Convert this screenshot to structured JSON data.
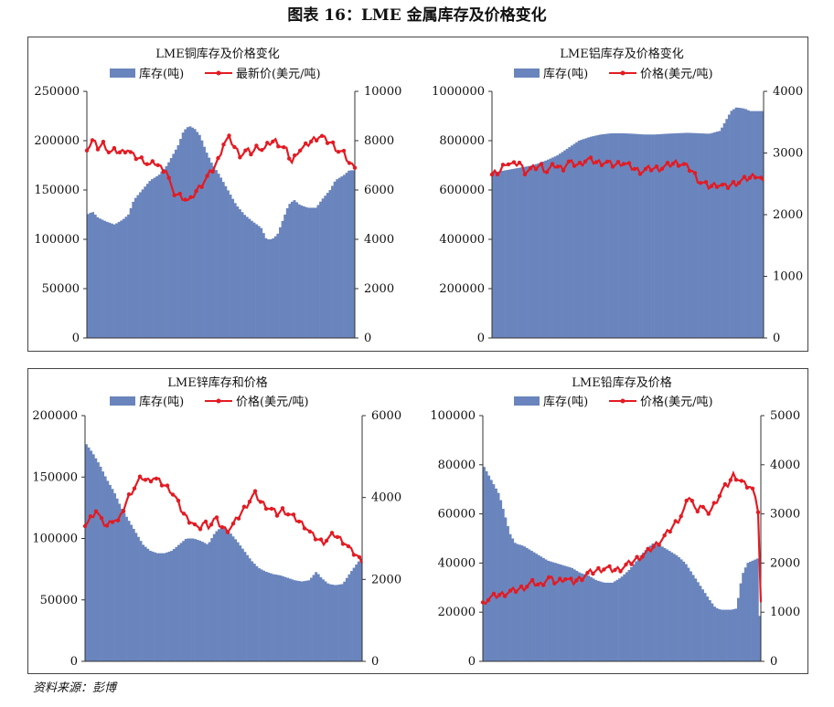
{
  "figure_title": "图表 16：LME 金属库存及价格变化",
  "source_note": "资料来源：彭博",
  "colors": {
    "inventory": "#6a85bd",
    "price": "#e31b23"
  },
  "chart_data": [
    {
      "id": "copper",
      "type": "bar+line",
      "title": "LME铜库存及价格变化",
      "legend": {
        "bar": "库存(吨)",
        "line": "最新价(美元/吨)"
      },
      "left_axis": {
        "min": 0,
        "max": 250000,
        "ticks": [
          "0",
          "50000",
          "100000",
          "150000",
          "200000",
          "250000"
        ]
      },
      "right_axis": {
        "min": 0,
        "max": 10000,
        "ticks": [
          "0",
          "2000",
          "4000",
          "6000",
          "8000",
          "10000"
        ]
      },
      "inventory_series": [
        [
          0,
          125000
        ],
        [
          2,
          128000
        ],
        [
          4,
          122000
        ],
        [
          7,
          118000
        ],
        [
          10,
          115000
        ],
        [
          13,
          120000
        ],
        [
          15,
          125000
        ],
        [
          17,
          140000
        ],
        [
          20,
          150000
        ],
        [
          23,
          160000
        ],
        [
          26,
          165000
        ],
        [
          29,
          175000
        ],
        [
          31,
          185000
        ],
        [
          33,
          195000
        ],
        [
          35,
          210000
        ],
        [
          37,
          215000
        ],
        [
          39,
          212000
        ],
        [
          41,
          205000
        ],
        [
          43,
          190000
        ],
        [
          45,
          178000
        ],
        [
          48,
          165000
        ],
        [
          51,
          150000
        ],
        [
          54,
          135000
        ],
        [
          57,
          125000
        ],
        [
          60,
          118000
        ],
        [
          63,
          112000
        ],
        [
          65,
          100000
        ],
        [
          67,
          100000
        ],
        [
          69,
          105000
        ],
        [
          71,
          120000
        ],
        [
          73,
          135000
        ],
        [
          75,
          140000
        ],
        [
          77,
          135000
        ],
        [
          80,
          132000
        ],
        [
          83,
          132000
        ],
        [
          85,
          140000
        ],
        [
          88,
          150000
        ],
        [
          90,
          160000
        ],
        [
          93,
          165000
        ],
        [
          95,
          170000
        ],
        [
          97,
          170000
        ]
      ],
      "price_series": [
        [
          0,
          7600
        ],
        [
          2,
          8000
        ],
        [
          4,
          7700
        ],
        [
          6,
          7900
        ],
        [
          8,
          7500
        ],
        [
          10,
          7600
        ],
        [
          12,
          7500
        ],
        [
          14,
          7700
        ],
        [
          16,
          7400
        ],
        [
          18,
          7300
        ],
        [
          20,
          7200
        ],
        [
          22,
          7000
        ],
        [
          24,
          7100
        ],
        [
          26,
          6900
        ],
        [
          28,
          6800
        ],
        [
          30,
          5900
        ],
        [
          32,
          5800
        ],
        [
          34,
          5700
        ],
        [
          36,
          5500
        ],
        [
          38,
          5900
        ],
        [
          40,
          6200
        ],
        [
          42,
          6500
        ],
        [
          44,
          6800
        ],
        [
          46,
          7200
        ],
        [
          48,
          7900
        ],
        [
          50,
          8100
        ],
        [
          52,
          7700
        ],
        [
          54,
          7400
        ],
        [
          56,
          7600
        ],
        [
          58,
          7500
        ],
        [
          60,
          7800
        ],
        [
          62,
          7600
        ],
        [
          64,
          7900
        ],
        [
          66,
          8000
        ],
        [
          68,
          7800
        ],
        [
          70,
          7600
        ],
        [
          72,
          7100
        ],
        [
          74,
          7600
        ],
        [
          76,
          7700
        ],
        [
          78,
          7900
        ],
        [
          80,
          8100
        ],
        [
          82,
          8200
        ],
        [
          84,
          8000
        ],
        [
          86,
          7900
        ],
        [
          88,
          7600
        ],
        [
          90,
          7500
        ],
        [
          92,
          7100
        ],
        [
          94,
          6900
        ]
      ]
    },
    {
      "id": "aluminum",
      "type": "bar+line",
      "title": "LME铝库存及价格变化",
      "legend": {
        "bar": "库存(吨)",
        "line": "价格(美元/吨)"
      },
      "left_axis": {
        "min": 0,
        "max": 1000000,
        "ticks": [
          "0",
          "200000",
          "400000",
          "600000",
          "800000",
          "1000000"
        ]
      },
      "right_axis": {
        "min": 0,
        "max": 4000,
        "ticks": [
          "0",
          "1000",
          "2000",
          "3000",
          "4000"
        ]
      },
      "inventory_series": [
        [
          0,
          670000
        ],
        [
          5,
          680000
        ],
        [
          10,
          690000
        ],
        [
          15,
          700000
        ],
        [
          20,
          720000
        ],
        [
          24,
          740000
        ],
        [
          28,
          770000
        ],
        [
          32,
          800000
        ],
        [
          36,
          815000
        ],
        [
          40,
          825000
        ],
        [
          44,
          830000
        ],
        [
          48,
          830000
        ],
        [
          52,
          828000
        ],
        [
          56,
          825000
        ],
        [
          60,
          825000
        ],
        [
          64,
          828000
        ],
        [
          68,
          830000
        ],
        [
          72,
          832000
        ],
        [
          76,
          830000
        ],
        [
          80,
          828000
        ],
        [
          84,
          840000
        ],
        [
          86,
          880000
        ],
        [
          88,
          920000
        ],
        [
          90,
          935000
        ],
        [
          93,
          930000
        ],
        [
          95,
          920000
        ],
        [
          97,
          920000
        ],
        [
          100,
          920000
        ]
      ],
      "price_series": [
        [
          0,
          2650
        ],
        [
          3,
          2700
        ],
        [
          5,
          2850
        ],
        [
          8,
          2800
        ],
        [
          10,
          2850
        ],
        [
          12,
          2700
        ],
        [
          15,
          2750
        ],
        [
          18,
          2800
        ],
        [
          20,
          2700
        ],
        [
          23,
          2800
        ],
        [
          26,
          2750
        ],
        [
          28,
          2850
        ],
        [
          32,
          2800
        ],
        [
          35,
          2900
        ],
        [
          38,
          2850
        ],
        [
          42,
          2850
        ],
        [
          45,
          2800
        ],
        [
          48,
          2850
        ],
        [
          52,
          2750
        ],
        [
          55,
          2700
        ],
        [
          58,
          2750
        ],
        [
          62,
          2750
        ],
        [
          65,
          2800
        ],
        [
          68,
          2850
        ],
        [
          71,
          2800
        ],
        [
          74,
          2700
        ],
        [
          76,
          2550
        ],
        [
          78,
          2500
        ],
        [
          80,
          2450
        ],
        [
          83,
          2500
        ],
        [
          86,
          2450
        ],
        [
          89,
          2500
        ],
        [
          92,
          2550
        ],
        [
          95,
          2600
        ],
        [
          97,
          2650
        ],
        [
          100,
          2550
        ]
      ]
    },
    {
      "id": "zinc",
      "type": "bar+line",
      "title": "LME锌库存和价格",
      "legend": {
        "bar": "库存(吨)",
        "line": "价格(美元/吨)"
      },
      "left_axis": {
        "min": 0,
        "max": 200000,
        "ticks": [
          "0",
          "50000",
          "100000",
          "150000",
          "200000"
        ]
      },
      "right_axis": {
        "min": 0,
        "max": 6000,
        "ticks": [
          "0",
          "2000",
          "4000",
          "6000"
        ]
      },
      "inventory_series": [
        [
          0,
          178000
        ],
        [
          3,
          170000
        ],
        [
          6,
          160000
        ],
        [
          9,
          148000
        ],
        [
          12,
          138000
        ],
        [
          15,
          125000
        ],
        [
          18,
          115000
        ],
        [
          21,
          105000
        ],
        [
          24,
          95000
        ],
        [
          27,
          90000
        ],
        [
          30,
          88000
        ],
        [
          33,
          88000
        ],
        [
          36,
          90000
        ],
        [
          39,
          95000
        ],
        [
          42,
          100000
        ],
        [
          45,
          100000
        ],
        [
          48,
          98000
        ],
        [
          51,
          95000
        ],
        [
          54,
          105000
        ],
        [
          57,
          110000
        ],
        [
          60,
          105000
        ],
        [
          63,
          98000
        ],
        [
          66,
          90000
        ],
        [
          69,
          82000
        ],
        [
          72,
          76000
        ],
        [
          75,
          73000
        ],
        [
          78,
          71000
        ],
        [
          81,
          70000
        ],
        [
          84,
          68000
        ],
        [
          87,
          66000
        ],
        [
          90,
          65000
        ],
        [
          93,
          66000
        ],
        [
          96,
          73000
        ],
        [
          98,
          68000
        ],
        [
          101,
          63000
        ],
        [
          104,
          62000
        ],
        [
          107,
          63000
        ],
        [
          110,
          72000
        ],
        [
          113,
          80000
        ],
        [
          115,
          85000
        ]
      ],
      "price_series": [
        [
          0,
          3300
        ],
        [
          2,
          3500
        ],
        [
          4,
          3700
        ],
        [
          6,
          3400
        ],
        [
          8,
          3300
        ],
        [
          10,
          3500
        ],
        [
          12,
          3400
        ],
        [
          14,
          3800
        ],
        [
          16,
          4100
        ],
        [
          18,
          4300
        ],
        [
          20,
          4500
        ],
        [
          22,
          4400
        ],
        [
          24,
          4500
        ],
        [
          26,
          4400
        ],
        [
          28,
          4300
        ],
        [
          30,
          4200
        ],
        [
          32,
          4000
        ],
        [
          34,
          3700
        ],
        [
          36,
          3500
        ],
        [
          38,
          3400
        ],
        [
          40,
          3200
        ],
        [
          42,
          3400
        ],
        [
          44,
          3300
        ],
        [
          46,
          3500
        ],
        [
          48,
          3300
        ],
        [
          50,
          3200
        ],
        [
          52,
          3300
        ],
        [
          54,
          3500
        ],
        [
          56,
          3700
        ],
        [
          58,
          3900
        ],
        [
          60,
          4100
        ],
        [
          62,
          3900
        ],
        [
          64,
          3800
        ],
        [
          66,
          3700
        ],
        [
          68,
          3600
        ],
        [
          70,
          3700
        ],
        [
          72,
          3600
        ],
        [
          74,
          3500
        ],
        [
          76,
          3400
        ],
        [
          78,
          3300
        ],
        [
          80,
          3100
        ],
        [
          82,
          3000
        ],
        [
          84,
          2900
        ],
        [
          86,
          3000
        ],
        [
          88,
          3100
        ],
        [
          90,
          3000
        ],
        [
          92,
          2900
        ],
        [
          94,
          2700
        ],
        [
          96,
          2600
        ],
        [
          98,
          2400
        ]
      ]
    },
    {
      "id": "lead",
      "type": "bar+line",
      "title": "LME铅库存及价格",
      "legend": {
        "bar": "库存(吨)",
        "line": "价格(美元/吨)"
      },
      "left_axis": {
        "min": 0,
        "max": 100000,
        "ticks": [
          "0",
          "20000",
          "40000",
          "60000",
          "80000",
          "100000"
        ]
      },
      "right_axis": {
        "min": 0,
        "max": 5000,
        "ticks": [
          "0",
          "1000",
          "2000",
          "3000",
          "4000",
          "5000"
        ]
      },
      "inventory_series": [
        [
          0,
          80000
        ],
        [
          2,
          76000
        ],
        [
          4,
          72000
        ],
        [
          6,
          68000
        ],
        [
          8,
          60000
        ],
        [
          10,
          52000
        ],
        [
          12,
          48000
        ],
        [
          15,
          47000
        ],
        [
          18,
          45000
        ],
        [
          21,
          43000
        ],
        [
          24,
          41000
        ],
        [
          27,
          40000
        ],
        [
          30,
          39000
        ],
        [
          33,
          38000
        ],
        [
          36,
          36000
        ],
        [
          39,
          35000
        ],
        [
          42,
          33000
        ],
        [
          45,
          32000
        ],
        [
          48,
          32000
        ],
        [
          51,
          34000
        ],
        [
          54,
          37000
        ],
        [
          57,
          41000
        ],
        [
          60,
          45000
        ],
        [
          63,
          48000
        ],
        [
          66,
          47000
        ],
        [
          69,
          45000
        ],
        [
          72,
          43000
        ],
        [
          75,
          40000
        ],
        [
          78,
          35000
        ],
        [
          81,
          30000
        ],
        [
          84,
          25000
        ],
        [
          86,
          22000
        ],
        [
          88,
          21000
        ],
        [
          90,
          21000
        ],
        [
          92,
          21000
        ],
        [
          94,
          21500
        ],
        [
          96,
          35000
        ],
        [
          98,
          40000
        ],
        [
          100,
          41000
        ],
        [
          102,
          42000
        ],
        [
          103,
          0
        ]
      ],
      "price_series": [
        [
          0,
          1200
        ],
        [
          3,
          1300
        ],
        [
          6,
          1350
        ],
        [
          9,
          1400
        ],
        [
          12,
          1450
        ],
        [
          15,
          1500
        ],
        [
          18,
          1600
        ],
        [
          21,
          1550
        ],
        [
          24,
          1700
        ],
        [
          27,
          1600
        ],
        [
          30,
          1700
        ],
        [
          33,
          1600
        ],
        [
          36,
          1700
        ],
        [
          39,
          1800
        ],
        [
          42,
          1850
        ],
        [
          45,
          1900
        ],
        [
          48,
          1850
        ],
        [
          51,
          1900
        ],
        [
          54,
          2000
        ],
        [
          57,
          2100
        ],
        [
          60,
          2200
        ],
        [
          63,
          2350
        ],
        [
          66,
          2500
        ],
        [
          69,
          2700
        ],
        [
          72,
          2900
        ],
        [
          74,
          3100
        ],
        [
          76,
          3400
        ],
        [
          78,
          3050
        ],
        [
          80,
          3200
        ],
        [
          82,
          3000
        ],
        [
          84,
          3100
        ],
        [
          86,
          3300
        ],
        [
          88,
          3500
        ],
        [
          90,
          3600
        ],
        [
          92,
          3800
        ],
        [
          94,
          3700
        ],
        [
          96,
          3600
        ],
        [
          98,
          3550
        ],
        [
          100,
          3400
        ],
        [
          101,
          3050
        ],
        [
          102,
          1200
        ]
      ]
    }
  ]
}
